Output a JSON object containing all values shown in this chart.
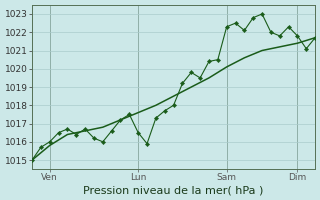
{
  "title": "",
  "xlabel": "Pression niveau de la mer( hPa )",
  "ylabel": "",
  "bg_color": "#cce8e8",
  "grid_color": "#aacccc",
  "line_color": "#1a5c1a",
  "ylim": [
    1014.5,
    1023.5
  ],
  "yticks": [
    1015,
    1016,
    1017,
    1018,
    1019,
    1020,
    1021,
    1022,
    1023
  ],
  "day_labels": [
    " Ven",
    " Lun",
    " Sam",
    "| Dim"
  ],
  "day_positions": [
    0.5,
    3.0,
    5.5,
    7.5
  ],
  "detailed_x": [
    0.0,
    0.25,
    0.5,
    0.75,
    1.0,
    1.25,
    1.5,
    1.75,
    2.0,
    2.25,
    2.5,
    2.75,
    3.0,
    3.25,
    3.5,
    3.75,
    4.0,
    4.25,
    4.5,
    4.75,
    5.0,
    5.25,
    5.5,
    5.75,
    6.0,
    6.25,
    6.5,
    6.75,
    7.0,
    7.25,
    7.5,
    7.75,
    8.0
  ],
  "detailed_y": [
    1015.0,
    1015.7,
    1016.0,
    1016.5,
    1016.7,
    1016.4,
    1016.7,
    1016.2,
    1016.0,
    1016.6,
    1017.2,
    1017.5,
    1016.5,
    1015.9,
    1017.3,
    1017.7,
    1018.0,
    1019.2,
    1019.8,
    1019.5,
    1020.4,
    1020.5,
    1022.3,
    1022.5,
    1022.1,
    1022.8,
    1023.0,
    1022.0,
    1021.8,
    1022.3,
    1021.8,
    1021.1,
    1021.7
  ],
  "smooth_x": [
    0.0,
    0.5,
    1.0,
    1.5,
    2.0,
    2.5,
    3.0,
    3.5,
    4.0,
    4.5,
    5.0,
    5.5,
    6.0,
    6.5,
    7.0,
    7.5,
    8.0
  ],
  "smooth_y": [
    1015.0,
    1015.8,
    1016.4,
    1016.6,
    1016.8,
    1017.2,
    1017.6,
    1018.0,
    1018.5,
    1019.0,
    1019.5,
    1020.1,
    1020.6,
    1021.0,
    1021.2,
    1021.4,
    1021.7
  ],
  "vline_positions": [
    0.5,
    3.0,
    5.5,
    7.5
  ],
  "xlabel_fontsize": 8,
  "tick_fontsize": 6.5
}
